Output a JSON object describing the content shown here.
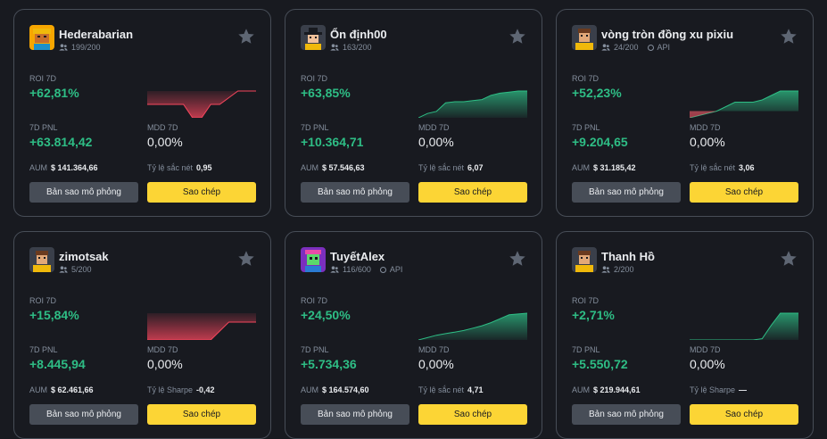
{
  "labels": {
    "roi": "ROI 7D",
    "pnl": "7D PNL",
    "mdd": "MDD 7D",
    "aum": "AUM",
    "sim_button": "Bản sao mô phỏng",
    "copy_button": "Sao chép",
    "api": "API"
  },
  "colors": {
    "positive": "#2ebd85",
    "negative": "#f6465d",
    "accent": "#fcd535"
  },
  "traders": [
    {
      "name": "Hederabarian",
      "followers": "199/200",
      "api": false,
      "avatar": "orange-helmet-avatar",
      "roi": "+62,81%",
      "pnl": "+63.814,42",
      "mdd": "0,00%",
      "aum": "$ 141.364,66",
      "ratio_label": "Tỷ lệ sắc nét",
      "ratio": "0,95",
      "trend": [
        -2,
        -2,
        -2,
        -2,
        -2,
        -4,
        -4,
        -2,
        -2,
        -1,
        0,
        0,
        0
      ],
      "trend_fill": "negative"
    },
    {
      "name": "Ổn định00",
      "followers": "163/200",
      "api": false,
      "avatar": "cowboy-hat-avatar",
      "roi": "+63,85%",
      "pnl": "+10.364,71",
      "mdd": "0,00%",
      "aum": "$ 57.546,63",
      "ratio_label": "Tỷ lệ sắc nét",
      "ratio": "6,07",
      "trend": [
        0,
        0.4,
        0.6,
        1.4,
        1.5,
        1.5,
        1.6,
        1.7,
        2.1,
        2.3,
        2.4,
        2.5,
        2.5
      ],
      "trend_fill": "positive"
    },
    {
      "name": "vòng tròn đồng xu pixiu",
      "followers": "24/200",
      "api": true,
      "avatar": "yellow-shirt-avatar",
      "roi": "+52,23%",
      "pnl": "+9.204,65",
      "mdd": "0,00%",
      "aum": "$ 31.185,42",
      "ratio_label": "Tỷ lệ sắc nét",
      "ratio": "3,06",
      "trend": [
        -0.3,
        -0.2,
        -0.1,
        0,
        0.2,
        0.4,
        0.4,
        0.4,
        0.5,
        0.7,
        0.9,
        0.9,
        0.9
      ],
      "trend_fill": "mixed"
    },
    {
      "name": "zimotsak",
      "followers": "5/200",
      "api": false,
      "avatar": "yellow-shirt-avatar",
      "roi": "+15,84%",
      "pnl": "+8.445,94",
      "mdd": "0,00%",
      "aum": "$ 62.461,66",
      "ratio_label": "Tỷ lệ Sharpe",
      "ratio": "-0,42",
      "trend": [
        -3,
        -3,
        -3,
        -3,
        -3,
        -3,
        -3,
        -3,
        -2,
        -1,
        -1,
        -1,
        -1
      ],
      "trend_fill": "negative"
    },
    {
      "name": "TuyếtAlex",
      "followers": "116/600",
      "api": true,
      "avatar": "purple-pixel-avatar",
      "roi": "+24,50%",
      "pnl": "+5.734,36",
      "mdd": "0,00%",
      "aum": "$ 164.574,60",
      "ratio_label": "Tỷ lệ sắc nét",
      "ratio": "4,71",
      "trend": [
        0,
        0.15,
        0.3,
        0.4,
        0.5,
        0.6,
        0.75,
        0.9,
        1.1,
        1.35,
        1.6,
        1.65,
        1.7
      ],
      "trend_fill": "positive"
    },
    {
      "name": "Thanh Hồ",
      "followers": "2/200",
      "api": false,
      "avatar": "yellow-shirt-avatar",
      "roi": "+2,71%",
      "pnl": "+5.550,72",
      "mdd": "0,00%",
      "aum": "$ 219.944,61",
      "ratio_label": "Tỷ lệ Sharpe",
      "ratio": "—",
      "trend": [
        0,
        0,
        0,
        0,
        0,
        0,
        0,
        0,
        0.05,
        0.6,
        1.1,
        1.1,
        1.1
      ],
      "trend_fill": "positive"
    }
  ]
}
